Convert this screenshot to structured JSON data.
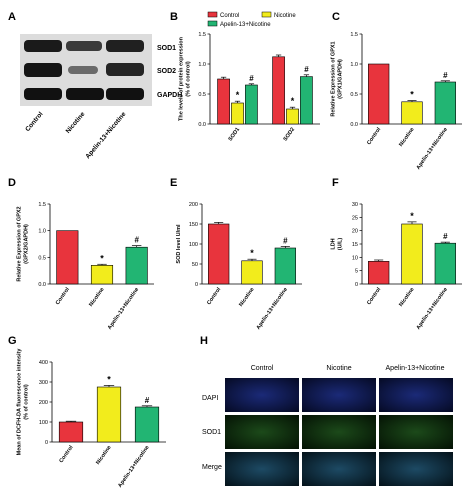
{
  "colors": {
    "control": "#e8343d",
    "nicotine": "#f2ec1c",
    "apelin": "#22b573",
    "axis": "#000000"
  },
  "panel_labels": [
    "A",
    "B",
    "C",
    "D",
    "E",
    "F",
    "G",
    "H"
  ],
  "western_blot": {
    "bands": [
      "SOD1",
      "SOD2",
      "GAPDH"
    ],
    "lanes": [
      "Control",
      "Nicotine",
      "Apelin-13+Nicotine"
    ]
  },
  "legend": [
    "Control",
    "Nicotine",
    "Apelin-13+Nicotine"
  ],
  "microscopy": {
    "columns": [
      "Control",
      "Nicotine",
      "Apelin-13+Nicotine"
    ],
    "rows": [
      "DAPI",
      "SOD1",
      "Merge"
    ]
  },
  "chart_data": [
    {
      "panel": "B",
      "type": "bar",
      "categories": [
        "SOD1",
        "SOD2"
      ],
      "series": [
        {
          "name": "Control",
          "values": [
            0.75,
            1.12
          ],
          "errors": [
            0.03,
            0.03
          ],
          "significance": [
            "",
            ""
          ]
        },
        {
          "name": "Nicotine",
          "values": [
            0.35,
            0.25
          ],
          "errors": [
            0.03,
            0.03
          ],
          "significance": [
            "*",
            "*"
          ]
        },
        {
          "name": "Apelin-13+Nicotine",
          "values": [
            0.65,
            0.79
          ],
          "errors": [
            0.02,
            0.03
          ],
          "significance": [
            "#",
            "#"
          ]
        }
      ],
      "ylabel": "The levels of protein expression (% of control)",
      "ylim": [
        0,
        1.5
      ],
      "yticks": [
        "0.0",
        "0.5",
        "1.0",
        "1.5"
      ]
    },
    {
      "panel": "C",
      "type": "bar",
      "categories": [
        "Control",
        "Nicotine",
        "Apelin-13+Nicotine"
      ],
      "values": [
        1.0,
        0.37,
        0.7
      ],
      "errors": [
        0.0,
        0.02,
        0.02
      ],
      "significance": [
        "",
        "*",
        "#"
      ],
      "ylabel": "Relative Expression of GPX1 (GPX1/GAPDH)",
      "ylim": [
        0,
        1.5
      ],
      "yticks": [
        "0.0",
        "0.5",
        "1.0",
        "1.5"
      ]
    },
    {
      "panel": "D",
      "type": "bar",
      "categories": [
        "Control",
        "Nicotine",
        "Apelin-13+Nicotine"
      ],
      "values": [
        1.0,
        0.35,
        0.69
      ],
      "errors": [
        0.0,
        0.02,
        0.03
      ],
      "significance": [
        "",
        "*",
        "#"
      ],
      "ylabel": "Relative Expression of GPX2 (GPX2/GAPDH)",
      "ylim": [
        0,
        1.5
      ],
      "yticks": [
        "0.0",
        "0.5",
        "1.0",
        "1.5"
      ]
    },
    {
      "panel": "E",
      "type": "bar",
      "categories": [
        "Control",
        "Nicotine",
        "Apelin-13+Nicotine"
      ],
      "values": [
        150,
        58,
        90
      ],
      "errors": [
        4,
        4,
        4
      ],
      "significance": [
        "",
        "*",
        "#"
      ],
      "ylabel": "SOD level U/ml",
      "ylim": [
        0,
        200
      ],
      "yticks": [
        "0",
        "50",
        "100",
        "150",
        "200"
      ]
    },
    {
      "panel": "F",
      "type": "bar",
      "categories": [
        "Control",
        "Nicotine",
        "Apelin-13+Nicotine"
      ],
      "values": [
        8.5,
        22.5,
        15.3
      ],
      "errors": [
        0.5,
        0.8,
        0.4
      ],
      "significance": [
        "",
        "*",
        "#"
      ],
      "ylabel": "LDH (U/L)",
      "ylim": [
        0,
        30
      ],
      "yticks": [
        "0",
        "5",
        "10",
        "15",
        "20",
        "25",
        "30"
      ]
    },
    {
      "panel": "G",
      "type": "bar",
      "categories": [
        "Control",
        "Nicotine",
        "Apelin-13+Nicotine"
      ],
      "values": [
        100,
        275,
        175
      ],
      "errors": [
        4,
        8,
        6
      ],
      "significance": [
        "",
        "*",
        "#"
      ],
      "ylabel": "Mean of DCFH-DA fluorescence intensity (% of control)",
      "ylim": [
        0,
        400
      ],
      "yticks": [
        "0",
        "100",
        "200",
        "300",
        "400"
      ]
    }
  ]
}
